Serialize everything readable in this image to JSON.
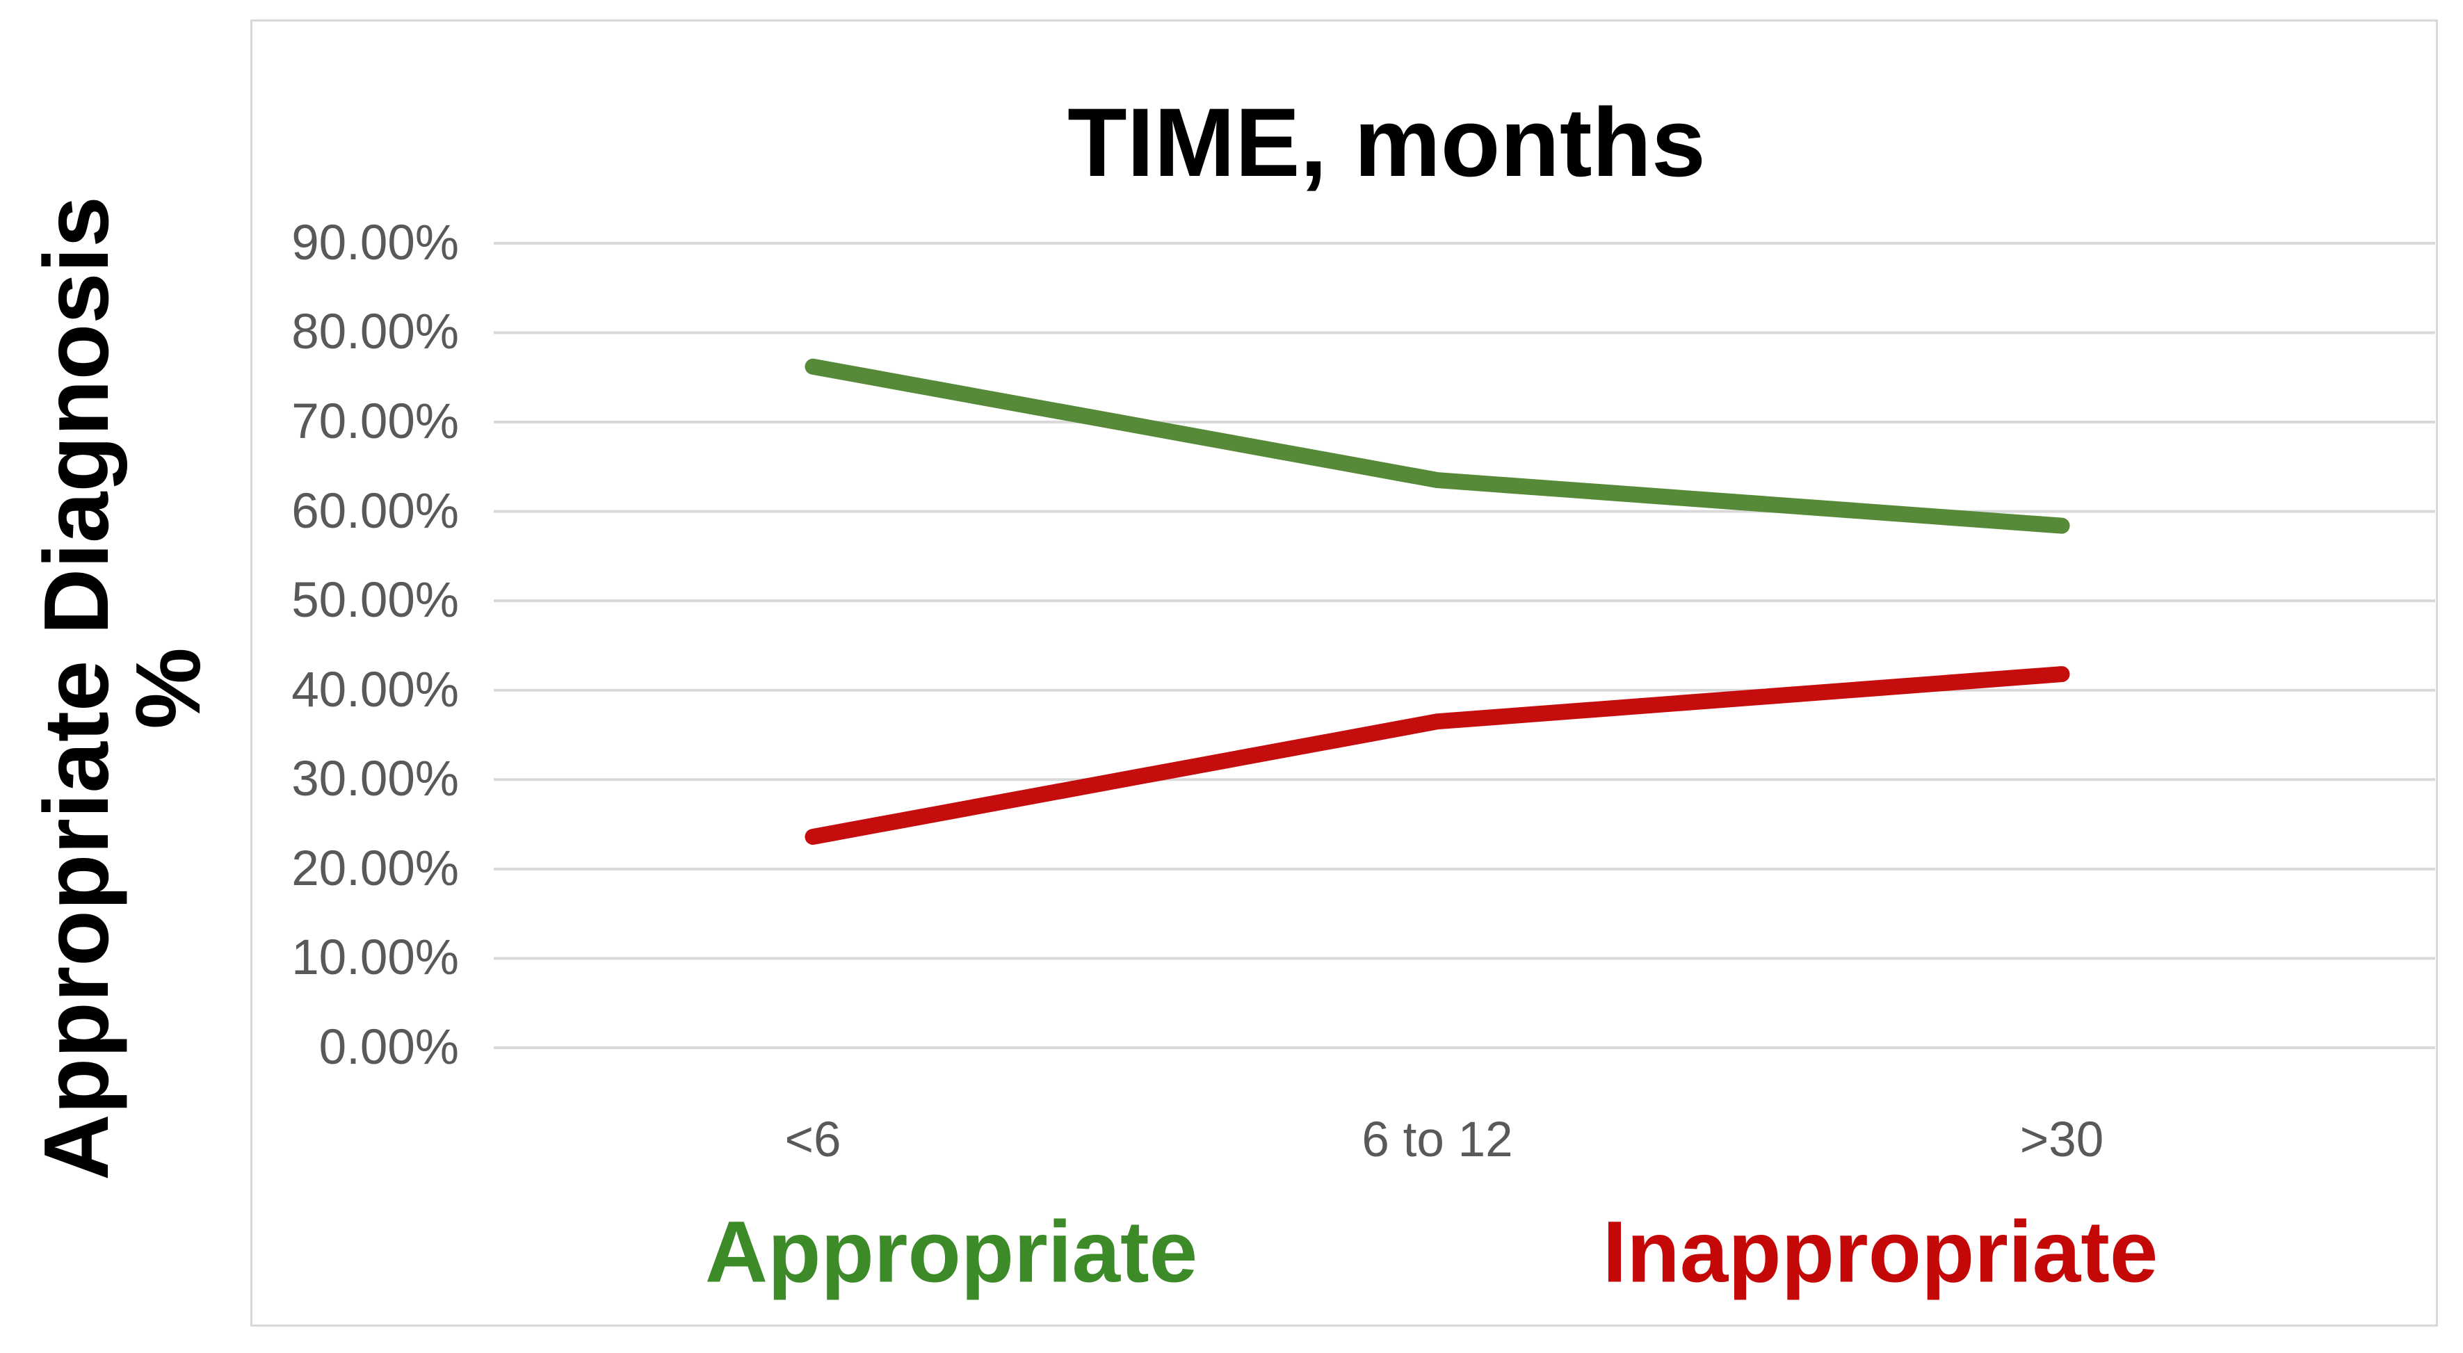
{
  "page": {
    "background": "#ffffff"
  },
  "chart": {
    "y_axis_title": [
      "Appropriate Diagnosis",
      "%"
    ],
    "colors": {
      "grid": "#d9d9d9",
      "frame_border": "#d9d9d9",
      "tick_text": "#595959",
      "title_text": "#000000"
    }
  },
  "chart_data": {
    "type": "line",
    "title": "TIME, months",
    "categories": [
      "<6",
      "6 to 12",
      ">30"
    ],
    "series": [
      {
        "name": "Appropriate",
        "color": "#568a38",
        "legend_color": "#3d8b28",
        "values": [
          76.2,
          63.5,
          58.4
        ]
      },
      {
        "name": "Inappropriate",
        "color": "#c60d0d",
        "legend_color": "#c40808",
        "values": [
          23.6,
          36.5,
          41.8
        ]
      }
    ],
    "xlabel": "TIME, months",
    "ylabel": "Appropriate Diagnosis %",
    "ylim": [
      0,
      90
    ],
    "y_ticks": [
      "0.00%",
      "10.00%",
      "20.00%",
      "30.00%",
      "40.00%",
      "50.00%",
      "60.00%",
      "70.00%",
      "80.00%",
      "90.00%"
    ],
    "grid": true,
    "legend_position": "bottom",
    "legend": [
      "Appropriate",
      "Inappropriate"
    ]
  }
}
